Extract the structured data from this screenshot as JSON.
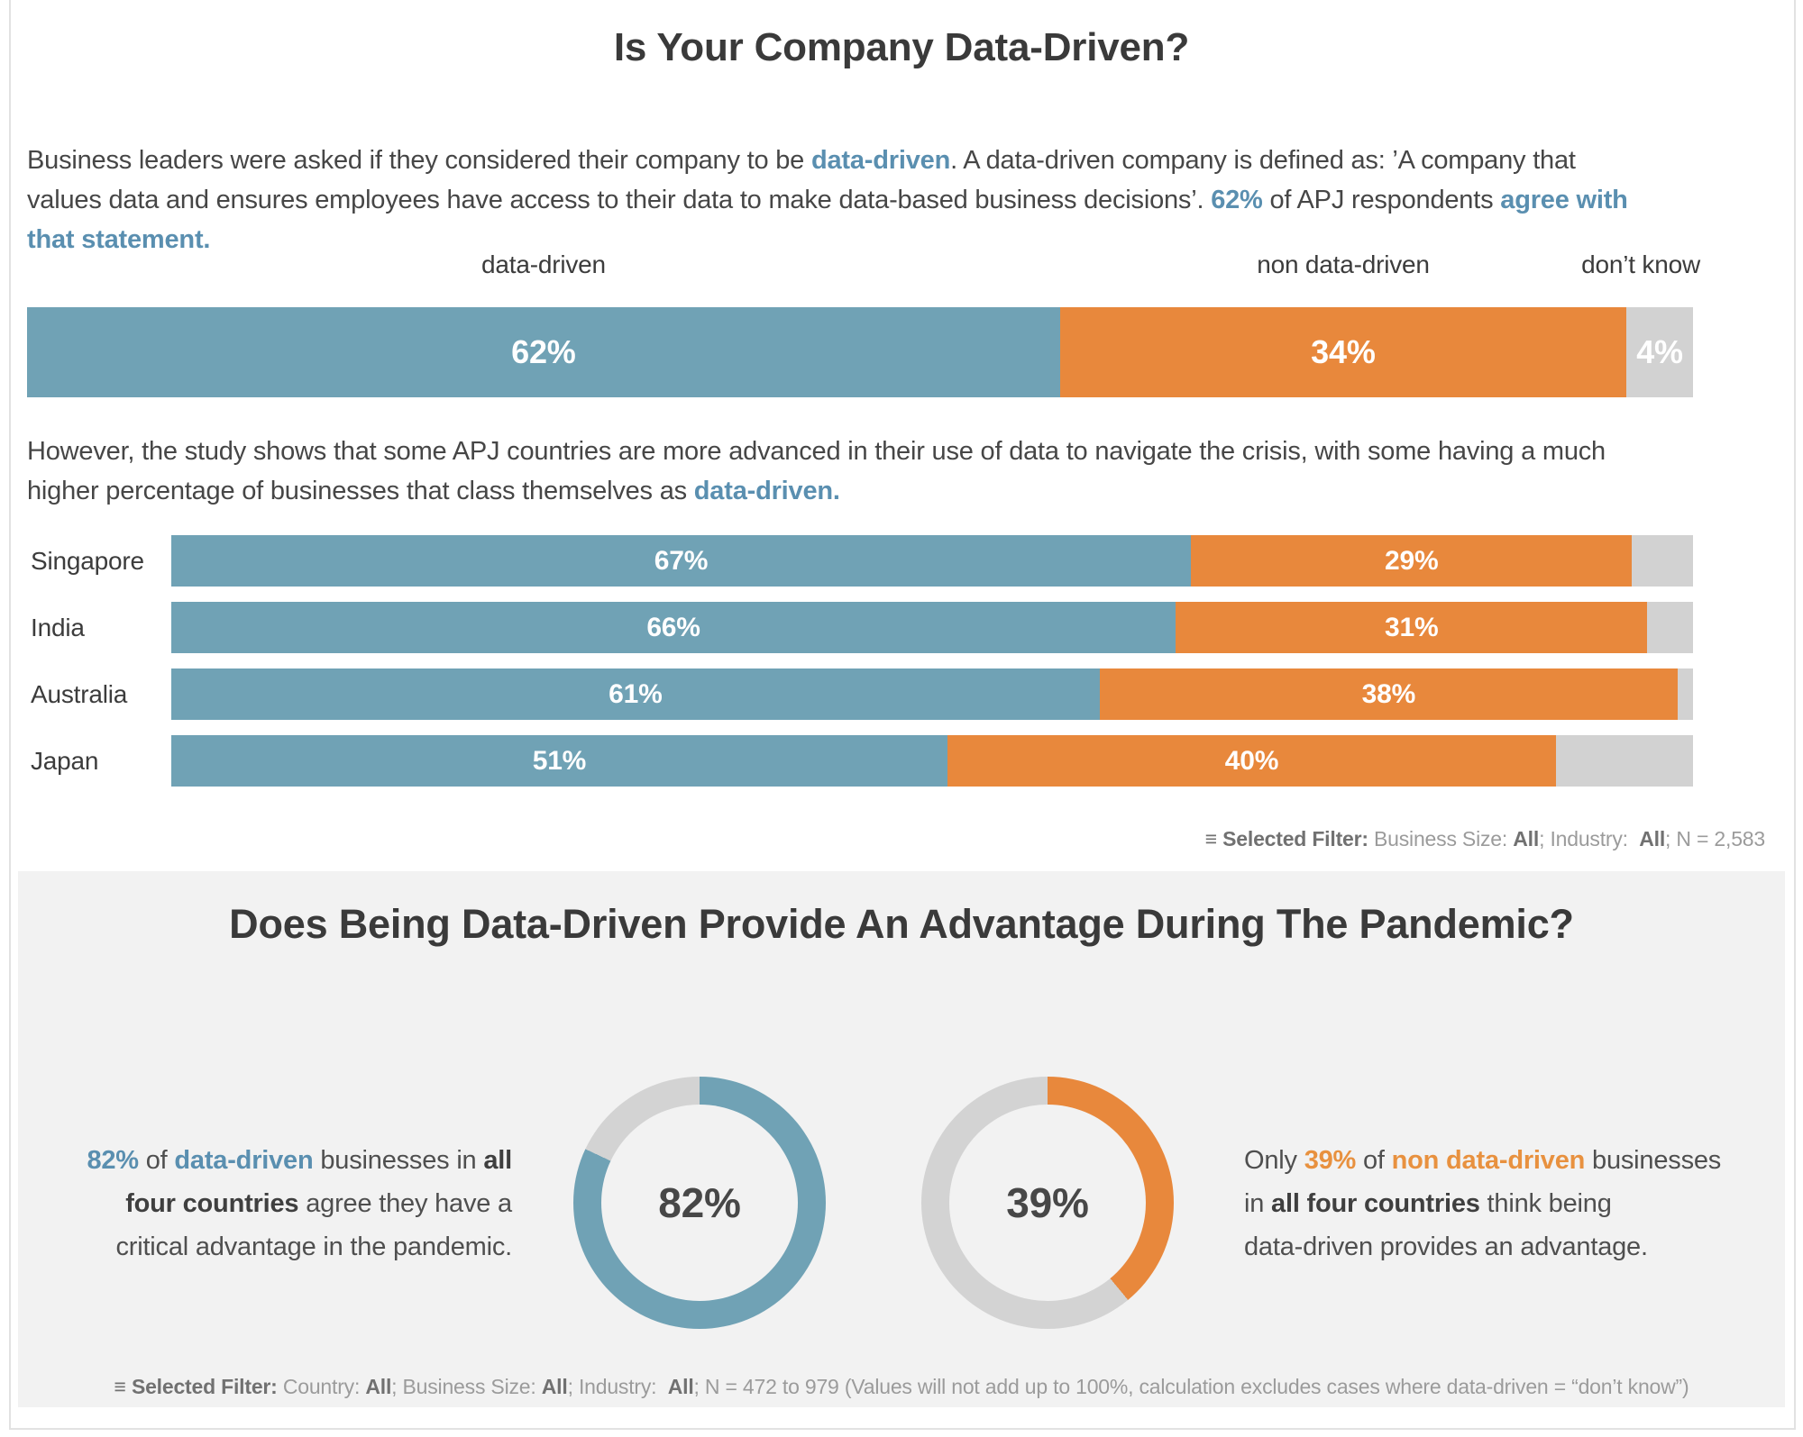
{
  "colors": {
    "blue": "#70A2B5",
    "orange": "#E8883C",
    "gray": "#D2D2D2",
    "panel_bg": "#F2F2F2",
    "text_blue": "#5A8FB0",
    "text_orange": "#E8913F"
  },
  "header": {
    "title": "Is Your Company Data-Driven?"
  },
  "intro": {
    "lines": [
      [
        {
          "t": "Business leaders were asked if they considered their company to be "
        },
        {
          "t": "data-driven",
          "c": "blue"
        },
        {
          "t": ". A data-driven company is defined as: ’A company that"
        }
      ],
      [
        {
          "t": "values data and ensures employees have access to their data to make data-based business decisions’. "
        },
        {
          "t": "62%",
          "c": "blue"
        },
        {
          "t": " of APJ respondents "
        },
        {
          "t": "agree with",
          "c": "blue"
        }
      ],
      [
        {
          "t": "that statement.",
          "c": "blue"
        }
      ]
    ]
  },
  "overall": {
    "col_labels": [
      "data-driven",
      "non data-driven",
      "don’t know"
    ],
    "bar": [
      {
        "name": "data-driven",
        "pct": 62,
        "label": "62%",
        "color": "#70A2B5"
      },
      {
        "name": "non-data-driven",
        "pct": 34,
        "label": "34%",
        "color": "#E8883C"
      },
      {
        "name": "dont-know",
        "pct": 4,
        "label": "4%",
        "color": "#D2D2D2"
      }
    ]
  },
  "body2": {
    "lines": [
      [
        {
          "t": "However, the study shows that some APJ countries are more advanced in their use of data to navigate the crisis, with some having a much"
        }
      ],
      [
        {
          "t": "higher percentage of businesses that class themselves as "
        },
        {
          "t": "data-driven.",
          "c": "blue"
        }
      ]
    ]
  },
  "countries": {
    "rows": [
      {
        "name": "Singapore",
        "bar": [
          {
            "name": "data-driven",
            "pct": 67,
            "label": "67%",
            "color": "#70A2B5"
          },
          {
            "name": "non-data-driven",
            "pct": 29,
            "label": "29%",
            "color": "#E8883C"
          },
          {
            "name": "dont-know",
            "pct": 4,
            "label": "",
            "color": "#D2D2D2"
          }
        ]
      },
      {
        "name": "India",
        "bar": [
          {
            "name": "data-driven",
            "pct": 66,
            "label": "66%",
            "color": "#70A2B5"
          },
          {
            "name": "non-data-driven",
            "pct": 31,
            "label": "31%",
            "color": "#E8883C"
          },
          {
            "name": "dont-know",
            "pct": 3,
            "label": "",
            "color": "#D2D2D2"
          }
        ]
      },
      {
        "name": "Australia",
        "bar": [
          {
            "name": "data-driven",
            "pct": 61,
            "label": "61%",
            "color": "#70A2B5"
          },
          {
            "name": "non-data-driven",
            "pct": 38,
            "label": "38%",
            "color": "#E8883C"
          },
          {
            "name": "dont-know",
            "pct": 1,
            "label": "",
            "color": "#D2D2D2"
          }
        ]
      },
      {
        "name": "Japan",
        "bar": [
          {
            "name": "data-driven",
            "pct": 51,
            "label": "51%",
            "color": "#70A2B5"
          },
          {
            "name": "non-data-driven",
            "pct": 40,
            "label": "40%",
            "color": "#E8883C"
          },
          {
            "name": "dont-know",
            "pct": 9,
            "label": "",
            "color": "#D2D2D2"
          }
        ]
      }
    ]
  },
  "filters": {
    "chart1": [
      {
        "t": "≡ ",
        "c": "bg"
      },
      {
        "t": "Selected Filter:",
        "c": "bg"
      },
      {
        "t": " Business Size: "
      },
      {
        "t": "All",
        "c": "bg"
      },
      {
        "t": "; Industry:  "
      },
      {
        "t": "All",
        "c": "bg"
      },
      {
        "t": "; N = 2,583"
      }
    ],
    "chart2": [
      {
        "t": "≡ ",
        "c": "bg"
      },
      {
        "t": "Selected Filter:",
        "c": "bg"
      },
      {
        "t": " Country: "
      },
      {
        "t": "All",
        "c": "bg"
      },
      {
        "t": "; Business Size: "
      },
      {
        "t": "All",
        "c": "bg"
      },
      {
        "t": "; Industry:  "
      },
      {
        "t": "All",
        "c": "bg"
      },
      {
        "t": "; N = 472 to 979 (Values will not add up to 100%, calculation excludes cases where data-driven = “don’t know”)"
      }
    ]
  },
  "advantage": {
    "title": "Does Being Data-Driven Provide An Advantage During The Pandemic?",
    "left_text": {
      "lines": [
        [
          {
            "t": "82%",
            "c": "blue"
          },
          {
            "t": " of "
          },
          {
            "t": "data-driven",
            "c": "blue"
          },
          {
            "t": " businesses in "
          },
          {
            "t": "all",
            "c": "b"
          }
        ],
        [
          {
            "t": "four countries",
            "c": "b"
          },
          {
            "t": " agree they have a"
          }
        ],
        [
          {
            "t": "critical advantage in the pandemic."
          }
        ]
      ]
    },
    "right_text": {
      "lines": [
        [
          {
            "t": "Only "
          },
          {
            "t": "39%",
            "c": "orange"
          },
          {
            "t": " of "
          },
          {
            "t": "non data-driven",
            "c": "orange"
          },
          {
            "t": " businesses"
          }
        ],
        [
          {
            "t": "in "
          },
          {
            "t": "all four countries",
            "c": "b"
          },
          {
            "t": " think being"
          }
        ],
        [
          {
            "t": "data-driven provides an advantage."
          }
        ]
      ]
    },
    "donuts": [
      {
        "name": "data-driven",
        "pct": 82,
        "label": "82%",
        "color": "#70A2B5",
        "track": "#D3D3D3"
      },
      {
        "name": "non-data-driven",
        "pct": 39,
        "label": "39%",
        "color": "#E8883C",
        "track": "#D3D3D3"
      }
    ]
  },
  "chart_data": [
    {
      "type": "bar",
      "subtype": "stacked-horizontal",
      "title": "Is Your Company Data-Driven? (APJ overall)",
      "categories": [
        "APJ respondents"
      ],
      "unit": "%",
      "xlim": [
        0,
        100
      ],
      "series": [
        {
          "name": "data-driven",
          "values": [
            62
          ],
          "color": "#70A2B5"
        },
        {
          "name": "non data-driven",
          "values": [
            34
          ],
          "color": "#E8883C"
        },
        {
          "name": "don’t know",
          "values": [
            4
          ],
          "color": "#D2D2D2"
        }
      ],
      "annotations": [
        "Selected Filter: Business Size: All; Industry: All; N = 2,583"
      ]
    },
    {
      "type": "bar",
      "subtype": "stacked-horizontal",
      "title": "Data-driven share by country",
      "categories": [
        "Singapore",
        "India",
        "Australia",
        "Japan"
      ],
      "unit": "%",
      "xlim": [
        0,
        100
      ],
      "series": [
        {
          "name": "data-driven",
          "values": [
            67,
            66,
            61,
            51
          ],
          "color": "#70A2B5"
        },
        {
          "name": "non data-driven",
          "values": [
            29,
            31,
            38,
            40
          ],
          "color": "#E8883C"
        },
        {
          "name": "don’t know",
          "values": [
            4,
            3,
            1,
            9
          ],
          "color": "#D2D2D2"
        }
      ]
    },
    {
      "type": "pie",
      "subtype": "donut",
      "title": "Data-driven businesses agreeing they have a critical advantage in the pandemic",
      "unit": "%",
      "values": [
        {
          "label": "agree",
          "value": 82,
          "color": "#70A2B5"
        },
        {
          "label": "remainder",
          "value": 18,
          "color": "#D3D3D3"
        }
      ]
    },
    {
      "type": "pie",
      "subtype": "donut",
      "title": "Non data-driven businesses thinking being data-driven provides an advantage",
      "unit": "%",
      "values": [
        {
          "label": "agree",
          "value": 39,
          "color": "#E8883C"
        },
        {
          "label": "remainder",
          "value": 61,
          "color": "#D3D3D3"
        }
      ],
      "annotations": [
        "Selected Filter: Country: All; Business Size: All; Industry: All; N = 472 to 979 (Values will not add up to 100%, calculation excludes cases where data-driven = “don’t know”)"
      ]
    }
  ]
}
